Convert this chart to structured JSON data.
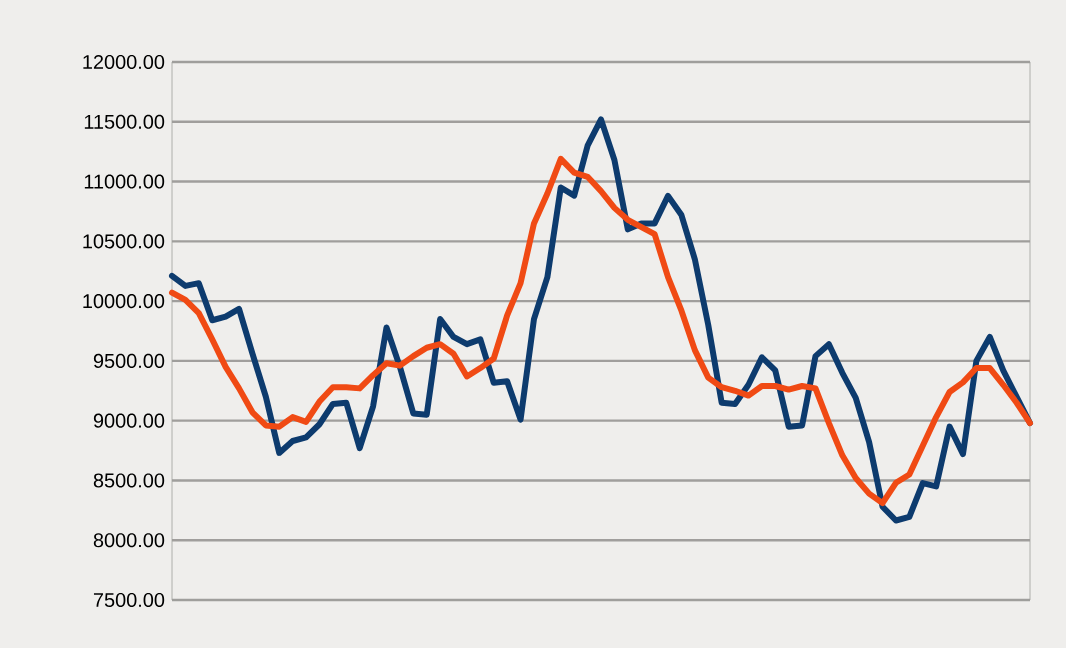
{
  "chart_data": {
    "type": "line",
    "categories": [
      null,
      null,
      null,
      null,
      null,
      null,
      null,
      null,
      null,
      null,
      null,
      null,
      null,
      null,
      null,
      null,
      null,
      null,
      null,
      null,
      null,
      null,
      null,
      null,
      null,
      null,
      null,
      null,
      null,
      null,
      null,
      null,
      null,
      null,
      null,
      null,
      null,
      null,
      null,
      null,
      null,
      null,
      null,
      null,
      null,
      null,
      null,
      null,
      null,
      null,
      null,
      null,
      null,
      null,
      null,
      null,
      null,
      null,
      null,
      null,
      null,
      null,
      null,
      null,
      null
    ],
    "series": [
      {
        "color": "#0d3b6e",
        "values": [
          10211,
          10127,
          10150,
          9840,
          9870,
          9935,
          9560,
          9200,
          8730,
          8830,
          8860,
          8970,
          9140,
          9150,
          8770,
          9120,
          9780,
          9450,
          9060,
          9050,
          9850,
          9700,
          9640,
          9680,
          9317,
          9330,
          9009,
          9850,
          10200,
          10950,
          10882,
          11300,
          11520,
          11180,
          10600,
          10650,
          10650,
          10880,
          10720,
          10350,
          9800,
          9150,
          9140,
          9300,
          9530,
          9420,
          8950,
          8960,
          9540,
          9640,
          9400,
          9190,
          8820,
          8280,
          8165,
          8195,
          8478,
          8450,
          8950,
          8720,
          9500,
          9700,
          9420,
          9200,
          8980
        ]
      },
      {
        "color": "#f04a14",
        "values": [
          10071,
          10010,
          9900,
          9680,
          9450,
          9270,
          9070,
          8960,
          8950,
          9030,
          8990,
          9160,
          9280,
          9280,
          9270,
          9380,
          9480,
          9460,
          9540,
          9610,
          9640,
          9560,
          9370,
          9440,
          9520,
          9880,
          10150,
          10650,
          10900,
          11190,
          11075,
          11040,
          10920,
          10780,
          10680,
          10620,
          10560,
          10200,
          9920,
          9590,
          9360,
          9280,
          9250,
          9210,
          9290,
          9290,
          9260,
          9290,
          9270,
          8980,
          8710,
          8520,
          8390,
          8310,
          8480,
          8550,
          8790,
          9030,
          9240,
          9320,
          9440,
          9440,
          9300,
          9150,
          8980
        ]
      }
    ],
    "ylim": [
      7500,
      12000
    ],
    "yticks": [
      {
        "value": 7500,
        "label": "7500.00"
      },
      {
        "value": 8000,
        "label": "8000.00"
      },
      {
        "value": 8500,
        "label": "8500.00"
      },
      {
        "value": 9000,
        "label": "9000.00"
      },
      {
        "value": 9500,
        "label": "9500.00"
      },
      {
        "value": 10000,
        "label": "10000.00"
      },
      {
        "value": 10500,
        "label": "10500.00"
      },
      {
        "value": 11000,
        "label": "11000.00"
      },
      {
        "value": 11500,
        "label": "11500.00"
      },
      {
        "value": 12000,
        "label": "12000.00"
      }
    ],
    "grid": "y",
    "tick_labels": "y",
    "marker": "none",
    "line_style": "solid"
  }
}
